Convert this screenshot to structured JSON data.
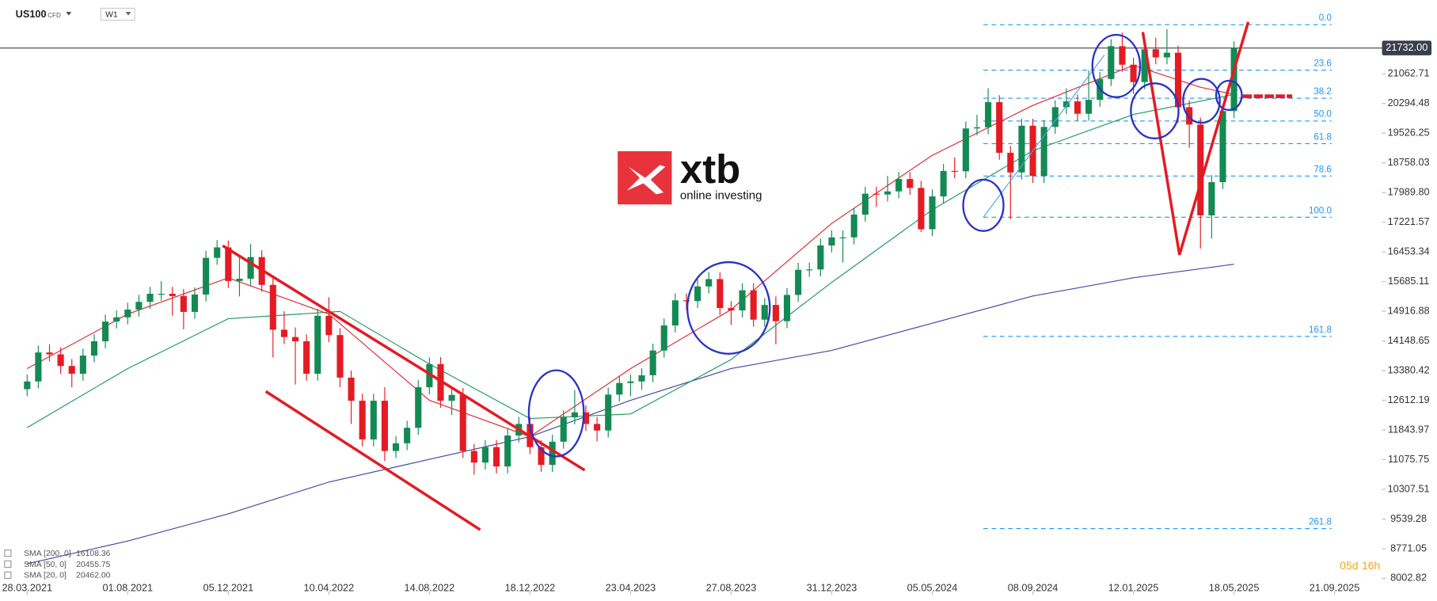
{
  "instrument": {
    "symbol": "US100",
    "kind": "CFD",
    "timeframe": "W1"
  },
  "logo": {
    "brand": "xtb",
    "tagline": "online investing"
  },
  "countdown": {
    "days": "05d",
    "hours": "16h"
  },
  "chart_data": {
    "type": "candlestick",
    "xlim": [
      "22.02.2021",
      "16.11.2025"
    ],
    "xticks": [
      "28.03.2021",
      "01.08.2021",
      "05.12.2021",
      "10.04.2022",
      "14.08.2022",
      "18.12.2022",
      "23.04.2023",
      "27.08.2023",
      "31.12.2023",
      "05.05.2024",
      "08.09.2024",
      "12.01.2025",
      "18.05.2025",
      "21.09.2025"
    ],
    "ylim": [
      7670,
      22975
    ],
    "yticks": [
      21062.71,
      20294.48,
      19526.25,
      18758.03,
      {
        "value": 17989.8,
        "label": "17989.80"
      },
      17221.57,
      16453.34,
      15685.11,
      14916.88,
      14148.65,
      13380.42,
      12612.19,
      11843.97,
      11075.75,
      10307.51,
      9539.28,
      8771.05,
      8002.82
    ],
    "last_price": {
      "value": 21732,
      "label": "21732.00"
    },
    "up_color": "#138a54",
    "down_color": "#e41b23",
    "x": [
      "28.03.2021",
      "11.04.2021",
      "25.04.2021",
      "09.05.2021",
      "23.05.2021",
      "06.06.2021",
      "20.06.2021",
      "04.07.2021",
      "18.07.2021",
      "01.08.2021",
      "15.08.2021",
      "29.08.2021",
      "12.09.2021",
      "26.09.2021",
      "10.10.2021",
      "24.10.2021",
      "07.11.2021",
      "21.11.2021",
      "05.12.2021",
      "19.12.2021",
      "02.01.2022",
      "16.01.2022",
      "30.01.2022",
      "13.02.2022",
      "27.02.2022",
      "13.03.2022",
      "27.03.2022",
      "10.04.2022",
      "24.04.2022",
      "08.05.2022",
      "22.05.2022",
      "05.06.2022",
      "19.06.2022",
      "03.07.2022",
      "17.07.2022",
      "31.07.2022",
      "14.08.2022",
      "28.08.2022",
      "11.09.2022",
      "25.09.2022",
      "09.10.2022",
      "23.10.2022",
      "06.11.2022",
      "20.11.2022",
      "04.12.2022",
      "18.12.2022",
      "01.01.2023",
      "15.01.2023",
      "29.01.2023",
      "12.02.2023",
      "26.02.2023",
      "12.03.2023",
      "26.03.2023",
      "09.04.2023",
      "23.04.2023",
      "07.05.2023",
      "21.05.2023",
      "04.06.2023",
      "18.06.2023",
      "02.07.2023",
      "16.07.2023",
      "30.07.2023",
      "13.08.2023",
      "27.08.2023",
      "10.09.2023",
      "24.09.2023",
      "08.10.2023",
      "22.10.2023",
      "05.11.2023",
      "19.11.2023",
      "03.12.2023",
      "17.12.2023",
      "31.12.2023",
      "14.01.2024",
      "28.01.2024",
      "11.02.2024",
      "25.02.2024",
      "10.03.2024",
      "24.03.2024",
      "07.04.2024",
      "21.04.2024",
      "05.05.2024",
      "19.05.2024",
      "02.06.2024",
      "16.06.2024",
      "30.06.2024",
      "14.07.2024",
      "28.07.2024",
      "11.08.2024",
      "25.08.2024",
      "08.09.2024",
      "22.09.2024",
      "06.10.2024",
      "20.10.2024",
      "03.11.2024",
      "17.11.2024",
      "01.12.2024",
      "15.12.2024",
      "29.12.2024",
      "12.01.2025",
      "26.01.2025",
      "09.02.2025",
      "23.02.2025",
      "09.03.2025",
      "23.03.2025",
      "06.04.2025",
      "20.04.2025",
      "04.05.2025",
      "18.05.2025"
    ],
    "open": [
      12900,
      13100,
      13850,
      13800,
      13500,
      13300,
      13770,
      14140,
      14650,
      14760,
      14960,
      15160,
      15370,
      15370,
      15310,
      14900,
      15350,
      16300,
      16570,
      15700,
      15760,
      16320,
      15600,
      14440,
      14250,
      14140,
      13300,
      14800,
      14300,
      13200,
      12600,
      11600,
      12600,
      11300,
      11500,
      11900,
      12950,
      13550,
      12600,
      12750,
      11300,
      11000,
      11400,
      10900,
      11700,
      12000,
      11400,
      10940,
      11540,
      12170,
      12300,
      12000,
      11830,
      12760,
      13060,
      13100,
      13260,
      13900,
      14550,
      15200,
      15180,
      15560,
      15750,
      15000,
      14940,
      15460,
      14700,
      15080,
      14660,
      15340,
      15990,
      16000,
      16620,
      16830,
      16830,
      17420,
      17960,
      17940,
      18020,
      18340,
      18110,
      17040,
      17890,
      18550,
      18540,
      19650,
      19680,
      20330,
      19020,
      18510,
      19720,
      18420,
      19690,
      20200,
      20350,
      20030,
      20390,
      20930,
      21780,
      21300,
      20850,
      21700,
      21490,
      21610,
      20200,
      19750,
      17400,
      18260,
      20100
    ],
    "high": [
      13280,
      14030,
      14060,
      13980,
      13680,
      13950,
      14320,
      14830,
      14940,
      15140,
      15340,
      15550,
      15700,
      15550,
      15490,
      15530,
      16480,
      16760,
      16750,
      16350,
      16660,
      16500,
      15780,
      14920,
      14500,
      14320,
      14980,
      15280,
      14480,
      13380,
      12780,
      12780,
      12950,
      11680,
      12080,
      13130,
      13720,
      13730,
      12930,
      12930,
      11480,
      11580,
      11580,
      11880,
      12180,
      12180,
      11580,
      11720,
      12350,
      12880,
      12480,
      12180,
      12940,
      13240,
      13280,
      13440,
      14080,
      14730,
      15380,
      15380,
      15740,
      15930,
      15930,
      15180,
      15640,
      15640,
      15260,
      15300,
      15520,
      16170,
      16180,
      16800,
      17010,
      17010,
      17600,
      18140,
      18140,
      18420,
      18520,
      18520,
      18290,
      18070,
      18730,
      18900,
      19830,
      20000,
      20690,
      20510,
      19200,
      19900,
      19900,
      19870,
      20380,
      20690,
      20530,
      21150,
      21110,
      21960,
      22130,
      21480,
      21880,
      22000,
      22220,
      21790,
      20380,
      19930,
      18440,
      20280,
      21900
    ],
    "low": [
      12720,
      12920,
      13620,
      13300,
      12950,
      13120,
      13590,
      13960,
      14470,
      14580,
      14780,
      14980,
      15190,
      14800,
      14450,
      14720,
      15170,
      16120,
      15520,
      15300,
      15580,
      15420,
      13720,
      14070,
      13020,
      13120,
      13120,
      14120,
      12950,
      12000,
      11420,
      11420,
      11040,
      11120,
      11320,
      11720,
      12770,
      12420,
      12230,
      11120,
      10690,
      10820,
      10720,
      10720,
      11520,
      11220,
      10760,
      10760,
      11360,
      11990,
      11820,
      11550,
      11650,
      12580,
      12720,
      12880,
      13080,
      13720,
      14370,
      14950,
      15000,
      15380,
      14820,
      14560,
      14760,
      14520,
      14520,
      14060,
      14480,
      15160,
      15810,
      15820,
      16440,
      16180,
      16650,
      17240,
      17620,
      17760,
      17840,
      17930,
      16970,
      16860,
      17710,
      18360,
      18360,
      19470,
      19500,
      18840,
      17300,
      18330,
      18240,
      18240,
      19510,
      20020,
      19850,
      19850,
      20210,
      20750,
      21120,
      20540,
      20670,
      21310,
      21310,
      19800,
      19150,
      16540,
      16800,
      18080,
      19920
    ],
    "close": [
      13100,
      13850,
      13800,
      13500,
      13300,
      13770,
      14140,
      14650,
      14760,
      14960,
      15160,
      15370,
      15370,
      15310,
      14900,
      15350,
      16300,
      16570,
      15700,
      15760,
      16320,
      15600,
      14440,
      14250,
      14140,
      13300,
      14800,
      14300,
      13200,
      12600,
      11600,
      12600,
      11300,
      11500,
      11900,
      12950,
      13550,
      12600,
      12750,
      11300,
      11000,
      11400,
      10900,
      11700,
      12000,
      11400,
      10940,
      11540,
      12170,
      12300,
      12000,
      11830,
      12760,
      13060,
      13100,
      13260,
      13900,
      14550,
      15200,
      15180,
      15560,
      15750,
      15000,
      14940,
      15460,
      14700,
      15080,
      14660,
      15340,
      15990,
      16000,
      16620,
      16830,
      16830,
      17420,
      17960,
      17940,
      18020,
      18340,
      18110,
      17040,
      17890,
      18550,
      18540,
      19650,
      19680,
      20330,
      19020,
      18510,
      19720,
      18420,
      19690,
      20200,
      20350,
      20030,
      20390,
      20930,
      21780,
      21300,
      20850,
      21700,
      21490,
      21610,
      20200,
      19750,
      17400,
      18260,
      20100,
      21732
    ],
    "sma": [
      {
        "name": "SMA [200, 0]",
        "last": 16108.36,
        "color": "#3f4aa0",
        "x": [
          "28.03.2021",
          "01.08.2021",
          "05.12.2021",
          "10.04.2022",
          "14.08.2022",
          "18.12.2022",
          "23.04.2023",
          "27.08.2023",
          "31.12.2023",
          "05.05.2024",
          "08.09.2024",
          "12.01.2025",
          "18.05.2025"
        ],
        "values": [
          8381,
          8968,
          9673,
          10496,
          11083,
          11671,
          12611,
          13433,
          13903,
          14608,
          15313,
          15783,
          16135
        ]
      },
      {
        "name": "SMA [50, 0]",
        "last": 20455.75,
        "color": "#1e9a63",
        "x": [
          "28.03.2021",
          "01.08.2021",
          "05.12.2021",
          "24.04.2022",
          "14.08.2022",
          "18.12.2022",
          "23.04.2023",
          "27.08.2023",
          "31.12.2023",
          "05.05.2024",
          "08.09.2024",
          "12.01.2025",
          "18.05.2025"
        ],
        "values": [
          11906,
          13433,
          14725,
          14913,
          13550,
          12140,
          12258,
          13668,
          15665,
          17544,
          19073,
          20012,
          20529
        ]
      },
      {
        "name": "SMA [20, 0]",
        "last": {
          "value": 20462,
          "label": "20462.00"
        },
        "color": "#e0282e",
        "x": [
          "28.03.2021",
          "01.08.2021",
          "05.12.2021",
          "10.04.2022",
          "14.08.2022",
          "18.12.2022",
          "23.04.2023",
          "27.08.2023",
          "31.12.2023",
          "05.05.2024",
          "08.09.2024",
          "12.01.2025",
          "06.04.2025",
          "18.05.2025"
        ],
        "values": [
          13433,
          14843,
          15783,
          14843,
          12611,
          11671,
          13433,
          14960,
          17193,
          18955,
          20247,
          21284,
          20717,
          20529
        ]
      }
    ],
    "fib_levels": [
      {
        "label": "0.0",
        "price": 22335
      },
      {
        "label": "23.6",
        "price": 21159
      },
      {
        "label": "38.2",
        "price": 20431
      },
      {
        "label": "50.0",
        "price": 19843
      },
      {
        "label": "61.8",
        "price": 19256
      },
      {
        "label": "78.6",
        "price": 18418
      },
      {
        "label": "100.0",
        "price": 17352
      },
      {
        "label": "161.8",
        "price": 14267
      },
      {
        "label": "261.8",
        "price": 9290
      }
    ]
  }
}
